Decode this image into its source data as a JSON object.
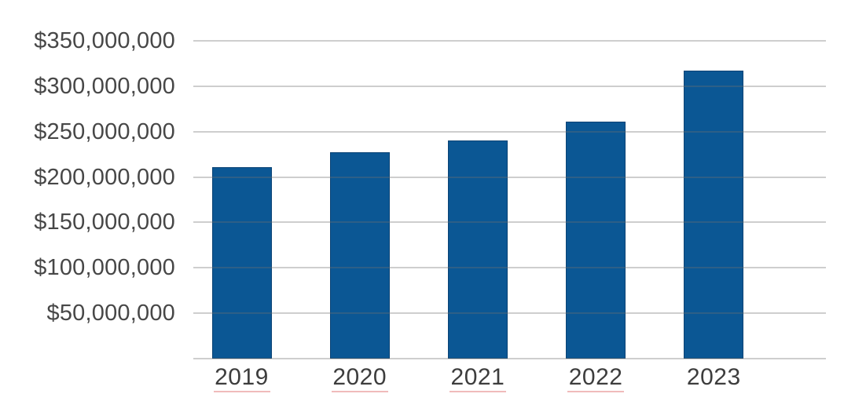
{
  "chart_data": {
    "type": "bar",
    "title": "",
    "xlabel": "",
    "ylabel": "",
    "categories": [
      "2019",
      "2020",
      "2021",
      "2022",
      "2023"
    ],
    "values": [
      211000000,
      227000000,
      240000000,
      261000000,
      317000000
    ],
    "y_axis_tick_labels": [
      "$350,000,000",
      "$300,000,000",
      "$250,000,000",
      "$200,000,000",
      "$150,000,000",
      "$100,000,000",
      "$50,000,000"
    ],
    "ylim": [
      0,
      350000000
    ],
    "gridline_interval": 50000000,
    "grid": "horizontal gridlines drawn over bars, no vertical axis line",
    "legend": "none",
    "colors": {
      "bar_fill": "#0b5794",
      "bar_border": "#0a4375",
      "gridline": "#c7c7c7",
      "y_label_text": "#474747",
      "x_label_text": "#3d3d3d",
      "background": "#ffffff",
      "year_underline_artifact": "rgba(205,30,30,0.30)"
    }
  }
}
